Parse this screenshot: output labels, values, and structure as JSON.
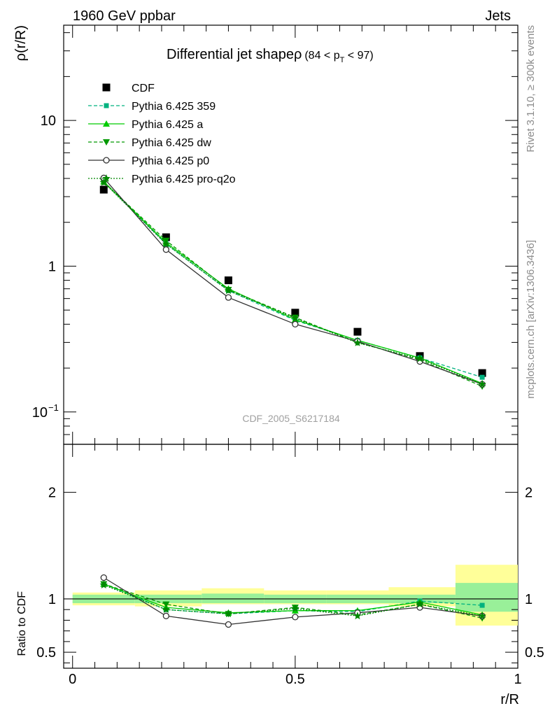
{
  "header": {
    "left": "1960 GeV ppbar",
    "right": "Jets"
  },
  "side": {
    "rivet": "Rivet 3.1.10, ≥ 300k events",
    "mcplots": "mcplots.cern.ch [arXiv:1306.3436]"
  },
  "colors": {
    "cdf": "#000000",
    "p359": "#00b27f",
    "pa": "#00cc00",
    "pdw": "#009900",
    "pp0": "#333333",
    "pq2o": "#008800",
    "band_yellow": "#ffff99",
    "band_green": "#99f099"
  },
  "chart_data": [
    {
      "type": "line",
      "title": "Differential jet shapeρ",
      "title_range_prefix": "(84 < p",
      "title_range_sub": "T",
      "title_range_suffix": " < 97)",
      "ylabel": "ρ(r/R)",
      "xlabel": "",
      "yscale": "log",
      "xlim": [
        -0.02,
        1.0
      ],
      "ylim": [
        0.06,
        45
      ],
      "yticks": [
        {
          "v": 10,
          "label": "10",
          "sup": ""
        },
        {
          "v": 1,
          "label": "1",
          "sup": ""
        },
        {
          "v": 0.1,
          "label": "10",
          "sup": "−1"
        }
      ],
      "watermark": "CDF_2005_S6217184",
      "x": [
        0.07,
        0.21,
        0.35,
        0.5,
        0.64,
        0.78,
        0.92
      ],
      "series": [
        {
          "name": "CDF",
          "key": "cdf",
          "values": [
            3.35,
            1.58,
            0.8,
            0.48,
            0.355,
            0.242,
            0.185
          ]
        },
        {
          "name": "Pythia 6.425 359",
          "key": "p359",
          "values": [
            3.8,
            1.42,
            0.68,
            0.425,
            0.31,
            0.235,
            0.173
          ]
        },
        {
          "name": "Pythia 6.425 a",
          "key": "pa",
          "values": [
            3.8,
            1.45,
            0.7,
            0.43,
            0.31,
            0.235,
            0.157
          ]
        },
        {
          "name": "Pythia 6.425 dw",
          "key": "pdw",
          "values": [
            3.78,
            1.5,
            0.69,
            0.445,
            0.3,
            0.228,
            0.15
          ]
        },
        {
          "name": "Pythia 6.425 p0",
          "key": "pp0",
          "values": [
            4.03,
            1.3,
            0.61,
            0.4,
            0.305,
            0.222,
            0.155
          ]
        },
        {
          "name": "Pythia 6.425 pro-q2o",
          "key": "pq2o",
          "values": [
            3.75,
            1.42,
            0.68,
            0.44,
            0.298,
            0.232,
            0.155
          ]
        }
      ]
    },
    {
      "type": "line",
      "ylabel": "Ratio to CDF",
      "xlabel": "r/R",
      "xlim": [
        -0.02,
        1.0
      ],
      "ylim": [
        0.35,
        2.45
      ],
      "yticks": [
        {
          "v": 2,
          "label": "2"
        },
        {
          "v": 1,
          "label": "1"
        },
        {
          "v": 0.5,
          "label": "0.5"
        }
      ],
      "xticks": [
        {
          "v": 0,
          "label": "0"
        },
        {
          "v": 0.5,
          "label": "0.5"
        },
        {
          "v": 1,
          "label": "1"
        }
      ],
      "x": [
        0.07,
        0.21,
        0.35,
        0.5,
        0.64,
        0.78,
        0.92
      ],
      "bands": [
        {
          "x0": 0.0,
          "x1": 0.14,
          "y_lo": 0.94,
          "y_hi": 1.06,
          "g_lo": 0.96,
          "g_hi": 1.04
        },
        {
          "x0": 0.14,
          "x1": 0.29,
          "y_lo": 0.93,
          "y_hi": 1.08,
          "g_lo": 0.96,
          "g_hi": 1.04
        },
        {
          "x0": 0.29,
          "x1": 0.43,
          "y_lo": 0.95,
          "y_hi": 1.1,
          "g_lo": 0.96,
          "g_hi": 1.05
        },
        {
          "x0": 0.43,
          "x1": 0.57,
          "y_lo": 0.95,
          "y_hi": 1.08,
          "g_lo": 0.96,
          "g_hi": 1.04
        },
        {
          "x0": 0.57,
          "x1": 0.71,
          "y_lo": 0.95,
          "y_hi": 1.08,
          "g_lo": 0.96,
          "g_hi": 1.04
        },
        {
          "x0": 0.71,
          "x1": 0.86,
          "y_lo": 0.93,
          "y_hi": 1.11,
          "g_lo": 0.96,
          "g_hi": 1.04
        },
        {
          "x0": 0.86,
          "x1": 1.0,
          "y_lo": 0.75,
          "y_hi": 1.32,
          "g_lo": 0.88,
          "g_hi": 1.15
        }
      ],
      "series": [
        {
          "name": "Pythia 6.425 359",
          "key": "p359",
          "values": [
            1.14,
            0.9,
            0.86,
            0.89,
            0.88,
            0.98,
            0.94
          ]
        },
        {
          "name": "Pythia 6.425 a",
          "key": "pa",
          "values": [
            1.14,
            0.92,
            0.87,
            0.89,
            0.89,
            0.97,
            0.85
          ]
        },
        {
          "name": "Pythia 6.425 dw",
          "key": "pdw",
          "values": [
            1.14,
            0.95,
            0.86,
            0.92,
            0.85,
            0.95,
            0.82
          ]
        },
        {
          "name": "Pythia 6.425 p0",
          "key": "pp0",
          "values": [
            1.2,
            0.84,
            0.76,
            0.83,
            0.87,
            0.92,
            0.84
          ]
        },
        {
          "name": "Pythia 6.425 pro-q2o",
          "key": "pq2o",
          "values": [
            1.13,
            0.9,
            0.86,
            0.91,
            0.84,
            0.95,
            0.84
          ]
        }
      ]
    }
  ]
}
